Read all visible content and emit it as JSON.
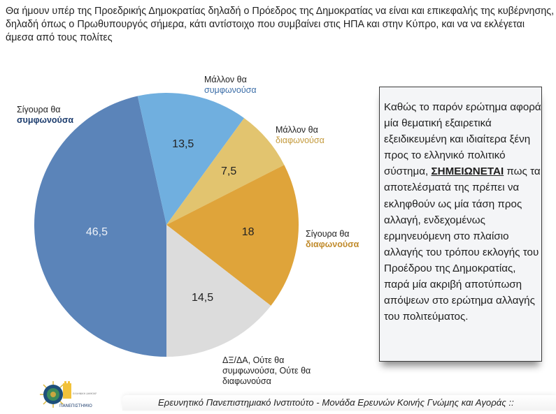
{
  "question": "Θα ήμουν υπέρ της Προεδρικής Δημοκρατίας δηλαδή ο Πρόεδρος της Δημοκρατίας να είναι και επικεφαλής της κυβέρνησης, δηλαδή όπως ο Πρωθυπουργός σήμερα, κάτι αντίστοιχο που συμβαίνει στις ΗΠΑ και στην Κύπρο, και να να εκλέγεται άμεσα από τους πολίτες",
  "chart_data": {
    "type": "pie",
    "title": "Θα ήμουν υπέρ της Προεδρικής Δημοκρατίας δηλαδή ο Πρόεδρος της Δημοκρατίας να είναι και επικεφαλής της κυβέρνησης, δηλαδή όπως ο Πρωθυπουργός σήμερα, κάτι αντίστοιχο που συμβαίνει στις ΗΠΑ και στην Κύπρο, και να να εκλέγεται άμεσα από τους πολίτες",
    "start_angle_deg": 180,
    "direction": "clockwise",
    "categories": [
      "Σίγουρα θα συμφωνούσα",
      "Μάλλον θα συμφωνούσα",
      "Μάλλον θα διαφωνούσα",
      "Σίγουρα θα διαφωνούσα",
      "ΔΞ/ΔΑ, Ούτε θα συμφωνούσα, Ούτε θα διαφωνούσα"
    ],
    "values": [
      46.5,
      13.5,
      7.5,
      18,
      14.5
    ],
    "value_labels": [
      "46,5",
      "13,5",
      "7,5",
      "18",
      "14,5"
    ],
    "colors": [
      "#5b84b9",
      "#70afdf",
      "#e2c46f",
      "#dfa43a",
      "#dcdcdc"
    ],
    "unit": "%"
  },
  "labels": {
    "sure_agree": {
      "line1": "Σίγουρα θα",
      "line2": "συμφωνούσα",
      "color": "#1d3d6e"
    },
    "rather_agree": {
      "line1": "Μάλλον θα",
      "line2": "συμφωνούσα",
      "color": "#3c6ea8"
    },
    "rather_disagree": {
      "line1": "Μάλλον θα",
      "line2": "διαφωνούσα",
      "color": "#c49a3c"
    },
    "sure_disagree": {
      "line1": "Σίγουρα θα",
      "line2": "διαφωνούσα",
      "color": "#c08a2a"
    },
    "dk": {
      "line1": "ΔΞ/ΔΑ, Ούτε θα",
      "line2": "συμφωνούσα, Ούτε θα",
      "line3": "διαφωνούσα"
    }
  },
  "note": {
    "before": "Καθώς το παρόν ερώτημα αφορά μία θεματική εξαιρετικά εξειδικευμένη και ιδιαίτερα ξένη προς το ελληνικό πολιτικό σύστημα,",
    "emphasis": "ΣΗΜΕΙΩΝΕΤΑΙ",
    "after": "πως τα αποτελέσματά της πρέπει να εκληφθούν ως μία τάση προς αλλαγή, ενδεχομένως ερμηνευόμενη στο πλαίσιο αλλαγής του τρόπου εκλογής του Προέδρου της Δημοκρατίας, παρά μία ακριβή αποτύπωση απόψεων στο ερώτημα αλλαγής του πολιτεύματος."
  },
  "logo": {
    "text": "ΠΑΝΕΠΙΣΤΗΜΙΟ",
    "subtext": "ΕΛΛΗΝΙΚΗ ΔΗΜΟΚΡΑΤΙΑ"
  },
  "footer": {
    "text": "Ερευνητικό Πανεπιστημιακό Ινστιτούτο - Μονάδα Ερευνών Κοινής Γνώμης και Αγοράς ::"
  }
}
